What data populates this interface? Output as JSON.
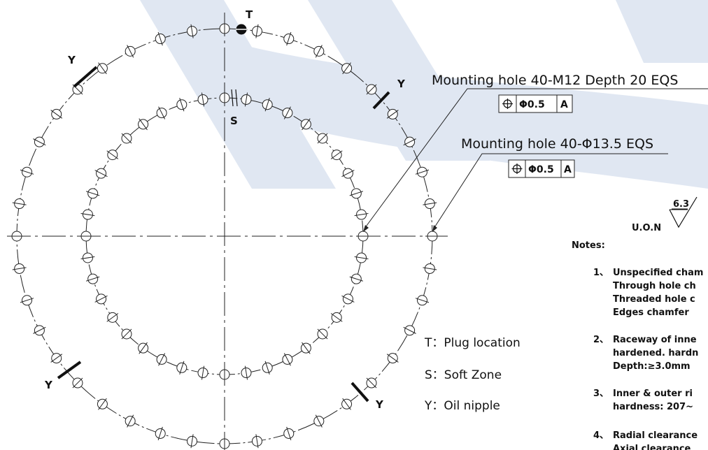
{
  "watermark": {
    "color": "#c7d4e8",
    "accent": "#1a3a8a"
  },
  "diagram": {
    "outer_ring": {
      "hole_count": 40
    },
    "inner_ring": {
      "hole_count": 40
    },
    "markers": {
      "T": "T",
      "S": "S",
      "Y": "Y"
    }
  },
  "callouts": {
    "outer": {
      "text": "Mounting hole 40-M12 Depth 20 EQS",
      "fcf": {
        "symbol": "⌖",
        "tolerance": "Φ0.5",
        "datum": "A"
      }
    },
    "inner": {
      "text": "Mounting hole 40-Φ13.5 EQS",
      "fcf": {
        "symbol": "⌖",
        "tolerance": "Φ0.5",
        "datum": "A"
      }
    }
  },
  "roughness": {
    "label": "U.O.N",
    "value": "6.3"
  },
  "legend": [
    {
      "key": "T：",
      "text": "Plug location"
    },
    {
      "key": "S：",
      "text": "Soft Zone"
    },
    {
      "key": "Y：",
      "text": "Oil nipple"
    }
  ],
  "notes": {
    "title": "Notes:",
    "items": [
      {
        "num": "1、",
        "lines": [
          "Unspecified cham",
          "Through hole ch",
          "Threaded hole c",
          "Edges chamfer"
        ]
      },
      {
        "num": "2、",
        "lines": [
          "Raceway of inne",
          "hardened. hardn",
          "Depth:≥3.0mm"
        ]
      },
      {
        "num": "3、",
        "lines": [
          "Inner & outer ri",
          "hardness: 207~"
        ]
      },
      {
        "num": "4、",
        "lines": [
          "Radial clearance",
          "Axial clearance"
        ]
      }
    ]
  }
}
